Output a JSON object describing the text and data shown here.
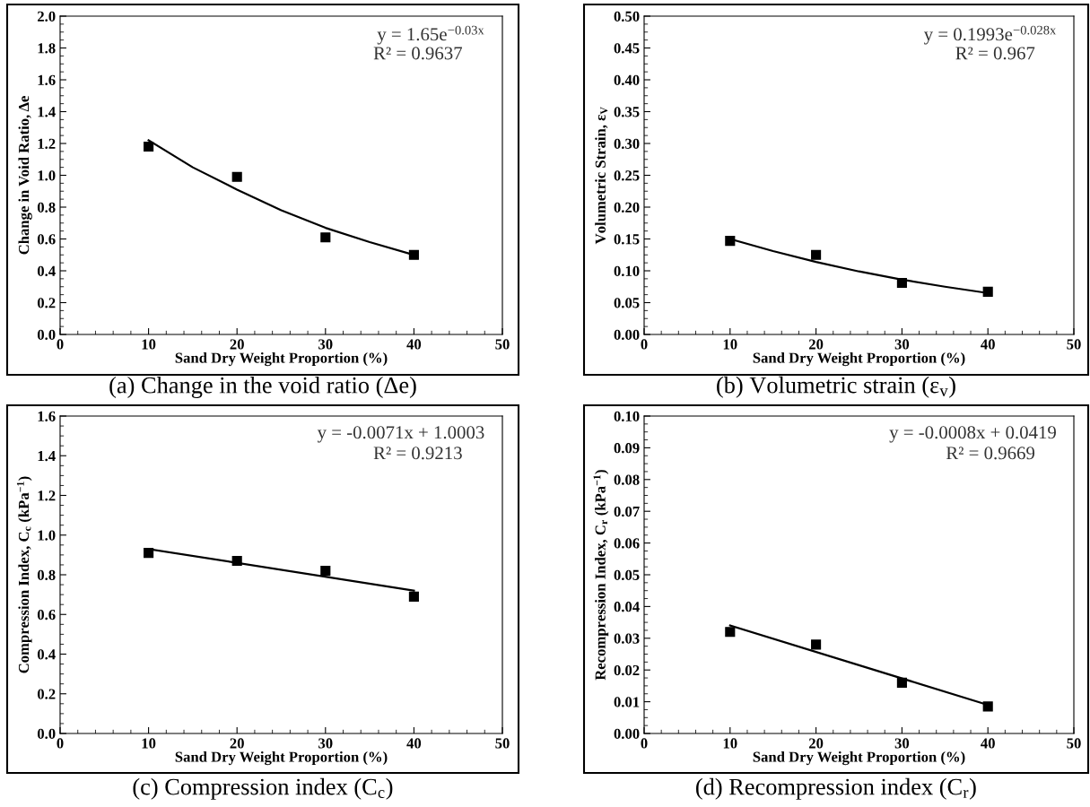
{
  "chart_data": [
    {
      "type": "scatter",
      "title": "(a) Change in the void ratio (Δe)",
      "xlabel": "Sand Dry Weight Proportion (%)",
      "ylabel": "Change in Void Ratio, Δe",
      "xlim": [
        0,
        50
      ],
      "xticks": [
        0,
        10,
        20,
        30,
        40,
        50
      ],
      "ylim": [
        0,
        2.0
      ],
      "yticks": [
        {
          "value": 0,
          "label": "0.0"
        },
        0.2,
        0.4,
        0.6,
        0.8,
        {
          "value": 1.0,
          "label": "1.0"
        },
        1.2,
        1.4,
        1.6,
        1.8,
        {
          "value": 2.0,
          "label": "2.0"
        }
      ],
      "grid": false,
      "legend": false,
      "annotations": [
        "y = 1.65e$^{−0.03x}$",
        "R² = 0.9637"
      ],
      "series": [
        {
          "color": "#000000",
          "marker": "square",
          "x": [
            10,
            20,
            30,
            40
          ],
          "values": [
            1.18,
            0.99,
            0.61,
            0.5
          ]
        },
        {
          "type": "line",
          "color": "#000000",
          "marker": "none",
          "line_style": "solid",
          "x": [
            10,
            15,
            20,
            25,
            30,
            35,
            40
          ],
          "values": [
            1.22,
            1.05,
            0.91,
            0.78,
            0.67,
            0.58,
            0.5
          ]
        }
      ]
    },
    {
      "type": "scatter",
      "title": "(b) Volumetric strain (ε$_{v}$)",
      "xlabel": "Sand Dry Weight Proportion (%)",
      "ylabel": "Volumetric Strain, ε$_{V}$",
      "xlim": [
        0,
        50
      ],
      "xticks": [
        0,
        10,
        20,
        30,
        40,
        50
      ],
      "ylim": [
        0,
        0.5
      ],
      "yticks": [
        {
          "value": 0,
          "label": "0.00"
        },
        0.05,
        {
          "value": 0.1,
          "label": "0.10"
        },
        0.15,
        {
          "value": 0.2,
          "label": "0.20"
        },
        0.25,
        {
          "value": 0.3,
          "label": "0.30"
        },
        0.35,
        {
          "value": 0.4,
          "label": "0.40"
        },
        0.45,
        {
          "value": 0.5,
          "label": "0.50"
        }
      ],
      "grid": false,
      "legend": false,
      "annotations": [
        "y = 0.1993e$^{−0.028x}$",
        "R² = 0.967"
      ],
      "series": [
        {
          "color": "#000000",
          "marker": "square",
          "x": [
            10,
            20,
            30,
            40
          ],
          "values": [
            0.147,
            0.125,
            0.081,
            0.067
          ]
        },
        {
          "type": "line",
          "color": "#000000",
          "marker": "none",
          "line_style": "solid",
          "x": [
            10,
            15,
            20,
            25,
            30,
            35,
            40
          ],
          "values": [
            0.15,
            0.131,
            0.114,
            0.099,
            0.086,
            0.075,
            0.065
          ]
        }
      ]
    },
    {
      "type": "scatter",
      "title": "(c) Compression index (C$_{c}$)",
      "xlabel": "Sand Dry Weight Proportion (%)",
      "ylabel": "Compression Index, C$_{c}$ (kPa$^{−1}$)",
      "xlim": [
        0,
        50
      ],
      "xticks": [
        0,
        10,
        20,
        30,
        40,
        50
      ],
      "ylim": [
        0,
        1.6
      ],
      "yticks": [
        {
          "value": 0,
          "label": "0.0"
        },
        0.2,
        0.4,
        0.6,
        0.8,
        {
          "value": 1.0,
          "label": "1.0"
        },
        1.2,
        1.4,
        1.6
      ],
      "grid": false,
      "legend": false,
      "annotations": [
        "y = -0.0071x + 1.0003",
        "R² = 0.9213"
      ],
      "series": [
        {
          "color": "#000000",
          "marker": "square",
          "x": [
            10,
            20,
            30,
            40
          ],
          "values": [
            0.91,
            0.87,
            0.82,
            0.69
          ]
        },
        {
          "type": "line",
          "color": "#000000",
          "marker": "none",
          "line_style": "solid",
          "x": [
            10,
            40
          ],
          "values": [
            0.93,
            0.72
          ]
        }
      ]
    },
    {
      "type": "scatter",
      "title": "(d) Recompression index (C$_{r}$)",
      "xlabel": "Sand Dry Weight Proportion (%)",
      "ylabel": "Recompression Index, C$_{r}$ (kPa$^{−1}$)",
      "xlim": [
        0,
        50
      ],
      "xticks": [
        0,
        10,
        20,
        30,
        40,
        50
      ],
      "ylim": [
        0,
        0.1
      ],
      "yticks": [
        {
          "value": 0,
          "label": "0.00"
        },
        0.01,
        0.02,
        0.03,
        0.04,
        0.05,
        0.06,
        0.07,
        0.08,
        0.09,
        {
          "value": 0.1,
          "label": "0.10"
        }
      ],
      "grid": false,
      "legend": false,
      "annotations": [
        "y = -0.0008x + 0.0419",
        "R² = 0.9669"
      ],
      "series": [
        {
          "color": "#000000",
          "marker": "square",
          "x": [
            10,
            20,
            30,
            40
          ],
          "values": [
            0.032,
            0.028,
            0.016,
            0.0085
          ]
        },
        {
          "type": "line",
          "color": "#000000",
          "marker": "none",
          "line_style": "solid",
          "x": [
            10,
            40
          ],
          "values": [
            0.034,
            0.009
          ]
        }
      ]
    }
  ]
}
